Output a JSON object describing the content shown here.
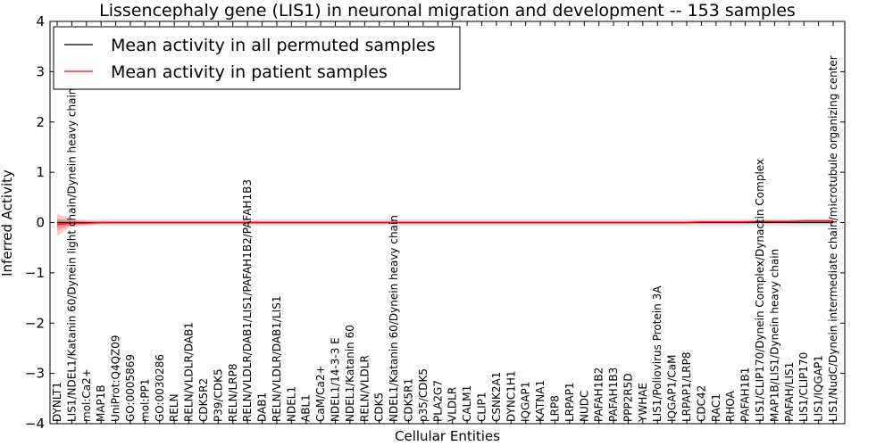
{
  "chart_data": {
    "type": "line",
    "title": "Lissencephaly gene (LIS1) in neuronal migration and development -- 153 samples",
    "xlabel": "Cellular Entities",
    "ylabel": "Inferred Activity",
    "ylim": [
      -4,
      4
    ],
    "yticks": [
      "−4",
      "−3",
      "−2",
      "−1",
      "0",
      "1",
      "2",
      "3",
      "4"
    ],
    "grid": false,
    "legend_position": "top-left",
    "categories": [
      "DYNLT1",
      "LIS1/NDEL1/Katanin 60/Dynein light chain/Dynein heavy chain",
      "mol:Ca2+",
      "MAP1B",
      "UniProt:Q4QZ09",
      "GO:0005869",
      "mol:PP1",
      "GO:0030286",
      "RELN",
      "RELN/VLDLR/DAB1",
      "CDK5R2",
      "P39/CDK5",
      "RELN/LRP8",
      "RELN/VLDLR/DAB1/LIS1/PAFAH1B2/PAFAH1B3",
      "DAB1",
      "RELN/VLDLR/DAB1/LIS1",
      "NDEL1",
      "ABL1",
      "CaM/Ca2+",
      "NDEL1/14-3-3 E",
      "NDEL1/Katanin 60",
      "RELN/VLDLR",
      "CDK5",
      "NDEL1/Katanin 60/Dynein heavy chain",
      "CDK5R1",
      "p35/CDK5",
      "PLA2G7",
      "VLDLR",
      "CALM1",
      "CLIP1",
      "CSNK2A1",
      "DYNC1H1",
      "IQGAP1",
      "KATNA1",
      "LRP8",
      "LRPAP1",
      "NUDC",
      "PAFAH1B2",
      "PAFAH1B3",
      "PPP2R5D",
      "YWHAE",
      "LIS1/Poliovirus Protein 3A",
      "IQGAP1/CaM",
      "LRPAP1/LRP8",
      "CDC42",
      "RAC1",
      "RHOA",
      "PAFAH1B1",
      "LIS1/CLIP170/Dynein Complex/Dynactin Complex",
      "MAP1B/LIS1/Dynein heavy chain",
      "PAFAH/LIS1",
      "LIS1/CLIP170",
      "LIS1/IQGAP1",
      "LIS1/NudC/Dynein intermediate chain/microtubule organizing center"
    ],
    "series": [
      {
        "name": "Mean activity in all permuted samples",
        "color": "#000000",
        "values": [
          0.0,
          0.0,
          0.0,
          0.0,
          0.0,
          0.0,
          0.0,
          0.0,
          0.0,
          0.0,
          0.0,
          0.0,
          0.0,
          0.0,
          0.0,
          0.0,
          0.0,
          0.0,
          0.0,
          0.0,
          0.0,
          0.0,
          0.0,
          0.0,
          0.0,
          0.0,
          0.0,
          0.0,
          0.0,
          0.0,
          0.0,
          0.0,
          0.0,
          0.0,
          0.0,
          0.0,
          0.0,
          0.0,
          0.0,
          0.0,
          0.0,
          0.0,
          0.0,
          0.0,
          0.0,
          0.0,
          0.0,
          0.0,
          0.0,
          0.0,
          0.0,
          0.0,
          0.0,
          0.0
        ],
        "spread": [
          0.07,
          0.07,
          0.07,
          0.07,
          0.07,
          0.07,
          0.07,
          0.07,
          0.07,
          0.07,
          0.07,
          0.07,
          0.07,
          0.07,
          0.07,
          0.07,
          0.07,
          0.07,
          0.07,
          0.07,
          0.07,
          0.07,
          0.07,
          0.07,
          0.07,
          0.07,
          0.07,
          0.07,
          0.07,
          0.07,
          0.07,
          0.07,
          0.07,
          0.07,
          0.07,
          0.07,
          0.07,
          0.07,
          0.07,
          0.07,
          0.07,
          0.07,
          0.07,
          0.07,
          0.07,
          0.07,
          0.07,
          0.07,
          0.07,
          0.07,
          0.07,
          0.07,
          0.07,
          0.07
        ]
      },
      {
        "name": "Mean activity in patient samples",
        "color": "#ff0000",
        "values": [
          -0.04,
          -0.01,
          -0.01,
          0.0,
          0.0,
          0.0,
          0.0,
          0.0,
          0.0,
          0.0,
          0.0,
          0.0,
          0.0,
          0.0,
          0.0,
          0.0,
          0.0,
          0.0,
          0.0,
          0.0,
          0.0,
          0.0,
          0.0,
          0.0,
          0.0,
          0.0,
          0.0,
          0.0,
          0.0,
          0.0,
          0.0,
          0.0,
          0.0,
          0.0,
          0.0,
          0.0,
          0.0,
          0.0,
          0.0,
          0.0,
          0.0,
          0.0,
          0.0,
          0.0,
          0.01,
          0.01,
          0.01,
          0.01,
          0.02,
          0.02,
          0.02,
          0.03,
          0.03,
          0.03
        ],
        "spread": [
          0.14,
          0.04,
          0.03,
          0.02,
          0.02,
          0.02,
          0.02,
          0.02,
          0.02,
          0.02,
          0.02,
          0.02,
          0.02,
          0.02,
          0.02,
          0.02,
          0.02,
          0.02,
          0.02,
          0.02,
          0.02,
          0.02,
          0.02,
          0.02,
          0.02,
          0.02,
          0.02,
          0.02,
          0.02,
          0.02,
          0.02,
          0.02,
          0.02,
          0.02,
          0.02,
          0.02,
          0.02,
          0.02,
          0.02,
          0.02,
          0.02,
          0.02,
          0.02,
          0.02,
          0.02,
          0.02,
          0.02,
          0.02,
          0.02,
          0.02,
          0.02,
          0.02,
          0.02,
          0.02
        ]
      }
    ]
  }
}
